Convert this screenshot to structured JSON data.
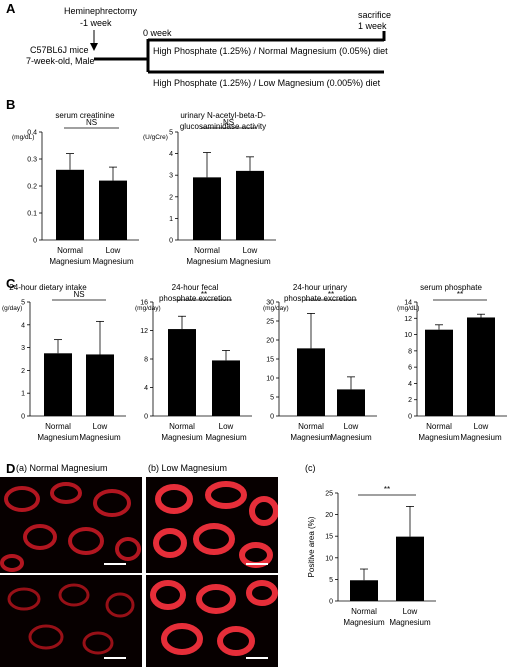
{
  "panel_letters": [
    "A",
    "B",
    "C",
    "D"
  ],
  "panelA": {
    "procedure": "Heminephrectomy",
    "procedure_time": "-1 week",
    "start": "0 week",
    "sacrifice": "sacrifice",
    "sacrifice_time": "1 week",
    "mice_line1": "C57BL6J mice",
    "mice_line2": "7-week-old, Male",
    "diet_normal": "High Phosphate (1.25%) / Normal Magnesium (0.05%) diet",
    "diet_low": "High Phosphate (1.25%) / Low Magnesium (0.005%) diet"
  },
  "group_labels": {
    "normal_l1": "Normal",
    "low_l1": "Low",
    "l2": "Magnesium"
  },
  "panelD": {
    "label_a": "(a) Normal Magnesium",
    "label_b": "(b) Low Magnesium",
    "label_c": "(c)"
  },
  "colors": {
    "bar": "#000000",
    "stain": "#e0202a",
    "background": "#ffffff"
  },
  "chart_data": [
    {
      "id": "b1",
      "type": "bar",
      "title": "serum creatinine",
      "title2": "",
      "ylabel": "",
      "unit": "(mg/dL)",
      "ylim": [
        0,
        0.4
      ],
      "ticks": [
        "0",
        "0.1",
        "0.2",
        "0.3",
        "0.4"
      ],
      "values": [
        0.26,
        0.22
      ],
      "errors": [
        0.06,
        0.05
      ],
      "sig": "NS"
    },
    {
      "id": "b2",
      "type": "bar",
      "title": "urinary N-acetyl-beta-D-",
      "title2": "glucosaminidase activity",
      "ylabel": "",
      "unit": "(U/gCre)",
      "ylim": [
        0,
        5
      ],
      "ticks": [
        "0",
        "1",
        "2",
        "3",
        "4",
        "5"
      ],
      "values": [
        2.9,
        3.2
      ],
      "errors": [
        1.15,
        0.65
      ],
      "sig": "NS"
    },
    {
      "id": "c1",
      "type": "bar",
      "title": "24-hour dietary intake",
      "title2": "",
      "ylabel": "",
      "unit": "(g/day)",
      "ylim": [
        0,
        5
      ],
      "ticks": [
        "0",
        "1",
        "2",
        "3",
        "4",
        "5"
      ],
      "values": [
        2.75,
        2.7
      ],
      "errors": [
        0.6,
        1.45
      ],
      "sig": "NS"
    },
    {
      "id": "c2",
      "type": "bar",
      "title": "24-hour fecal",
      "title2": "phosphate excretion",
      "ylabel": "",
      "unit": "(mg/day)",
      "ylim": [
        0,
        16
      ],
      "ticks": [
        "0",
        "4",
        "8",
        "12",
        "16"
      ],
      "values": [
        12.2,
        7.8
      ],
      "errors": [
        1.8,
        1.4
      ],
      "sig": "**"
    },
    {
      "id": "c3",
      "type": "bar",
      "title": "24-hour urinary",
      "title2": "phosphate excretion",
      "ylabel": "",
      "unit": "(mg/day)",
      "ylim": [
        0,
        30
      ],
      "ticks": [
        "0",
        "5",
        "10",
        "15",
        "20",
        "25",
        "30"
      ],
      "values": [
        17.8,
        7.0
      ],
      "errors": [
        9.2,
        3.3
      ],
      "sig": "**"
    },
    {
      "id": "c4",
      "type": "bar",
      "title": "serum phosphate",
      "title2": "",
      "ylabel": "",
      "unit": "(mg/dL)",
      "ylim": [
        0,
        14
      ],
      "ticks": [
        "0",
        "2",
        "4",
        "6",
        "8",
        "10",
        "12",
        "14"
      ],
      "values": [
        10.6,
        12.1
      ],
      "errors": [
        0.6,
        0.4
      ],
      "sig": "**"
    },
    {
      "id": "d",
      "type": "bar",
      "title": "",
      "title2": "",
      "ylabel": "Positive area (%)",
      "unit": "",
      "ylim": [
        0,
        25
      ],
      "ticks": [
        "0",
        "5",
        "10",
        "15",
        "20",
        "25"
      ],
      "values": [
        4.8,
        14.9
      ],
      "errors": [
        2.6,
        7.0
      ],
      "sig": "**"
    }
  ]
}
